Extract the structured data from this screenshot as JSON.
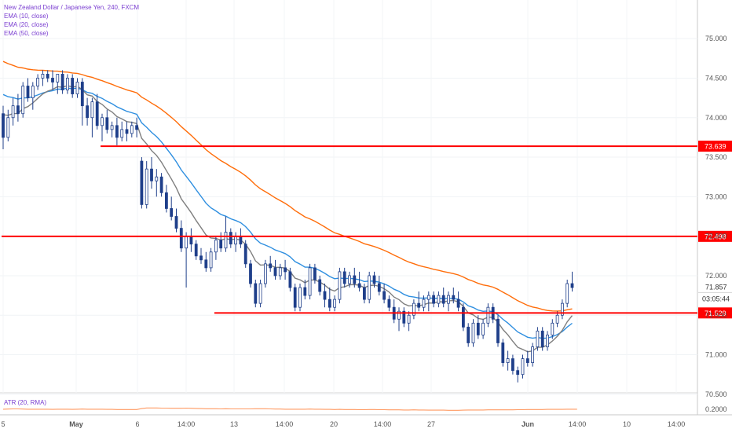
{
  "legend": {
    "title": "New Zealand Dollar / Japanese Yen, 240, FXCM",
    "ema10": "EMA (10, close)",
    "ema20": "EMA (20, close)",
    "ema50": "EMA (50, close)"
  },
  "atr_label": "ATR (20, RMA)",
  "colors": {
    "ema10": "#7f7f7f",
    "ema20": "#2f8fe0",
    "ema50": "#ff6d0a",
    "hline": "#ff0000",
    "candle": "#1f3f8a",
    "atr": "#ff9a62",
    "price_tag": "#ff0000",
    "accent_text": "#7b3fd1"
  },
  "chart_data": {
    "type": "candlestick",
    "price_ticks": [
      "75.000",
      "74.500",
      "74.000",
      "73.500",
      "73.000",
      "72.500",
      "72.000",
      "71.500",
      "71.000",
      "70.500"
    ],
    "price_tick_values": [
      75.0,
      74.5,
      74.0,
      73.5,
      73.0,
      72.5,
      72.0,
      71.5,
      71.0,
      70.5
    ],
    "ylim": [
      70.25,
      75.2
    ],
    "x_ticks": [
      "5",
      "May",
      "6",
      "14:00",
      "13",
      "14:00",
      "20",
      "14:00",
      "27",
      "Jun",
      "14:00",
      "10",
      "14:00"
    ],
    "x_bold": [
      "May",
      "Jun"
    ],
    "horizontal_levels": [
      {
        "value": 73.639,
        "label": "73.639",
        "from_bar": 20
      },
      {
        "value": 72.498,
        "label": "72.498",
        "from_bar": 0
      },
      {
        "value": 71.529,
        "label": "71.529",
        "from_bar": 43
      }
    ],
    "last_price": {
      "value": 71.857,
      "label": "71.857",
      "countdown": "03:05:44"
    },
    "ohlc": [
      [
        74.05,
        74.15,
        73.6,
        73.75
      ],
      [
        73.75,
        74.1,
        73.7,
        74.0
      ],
      [
        74.0,
        74.25,
        73.9,
        74.15
      ],
      [
        74.15,
        74.3,
        73.95,
        74.05
      ],
      [
        74.05,
        74.45,
        74.0,
        74.4
      ],
      [
        74.4,
        74.5,
        74.2,
        74.25
      ],
      [
        74.25,
        74.45,
        74.1,
        74.4
      ],
      [
        74.4,
        74.55,
        74.35,
        74.5
      ],
      [
        74.5,
        74.6,
        74.4,
        74.55
      ],
      [
        74.55,
        74.6,
        74.45,
        74.5
      ],
      [
        74.5,
        74.6,
        74.35,
        74.45
      ],
      [
        74.45,
        74.55,
        74.3,
        74.55
      ],
      [
        74.55,
        74.6,
        74.3,
        74.35
      ],
      [
        74.35,
        74.55,
        74.3,
        74.5
      ],
      [
        74.5,
        74.55,
        74.25,
        74.3
      ],
      [
        74.3,
        74.5,
        74.25,
        74.45
      ],
      [
        74.45,
        74.5,
        73.9,
        74.15
      ],
      [
        74.15,
        74.25,
        73.9,
        74.0
      ],
      [
        74.0,
        74.25,
        73.75,
        74.2
      ],
      [
        74.2,
        74.3,
        73.85,
        73.9
      ],
      [
        73.9,
        74.05,
        73.7,
        74.0
      ],
      [
        74.0,
        74.1,
        73.8,
        73.85
      ],
      [
        73.85,
        73.95,
        73.75,
        73.9
      ],
      [
        73.9,
        74.0,
        73.65,
        73.75
      ],
      [
        73.75,
        73.95,
        73.7,
        73.85
      ],
      [
        73.85,
        73.95,
        73.7,
        73.8
      ],
      [
        73.8,
        73.95,
        73.75,
        73.9
      ],
      [
        73.9,
        74.0,
        73.75,
        73.85
      ],
      [
        73.45,
        73.5,
        72.85,
        72.9
      ],
      [
        72.9,
        73.45,
        72.85,
        73.35
      ],
      [
        73.35,
        73.5,
        73.1,
        73.2
      ],
      [
        73.2,
        73.35,
        73.0,
        73.25
      ],
      [
        73.25,
        73.3,
        73.0,
        73.05
      ],
      [
        73.05,
        73.15,
        72.8,
        72.85
      ],
      [
        72.85,
        73.0,
        72.7,
        72.75
      ],
      [
        72.75,
        72.85,
        72.55,
        72.6
      ],
      [
        72.6,
        72.7,
        72.3,
        72.35
      ],
      [
        72.35,
        72.55,
        71.85,
        72.5
      ],
      [
        72.5,
        72.6,
        72.3,
        72.4
      ],
      [
        72.4,
        72.45,
        72.2,
        72.25
      ],
      [
        72.25,
        72.35,
        72.15,
        72.2
      ],
      [
        72.2,
        72.3,
        72.05,
        72.1
      ],
      [
        72.1,
        72.35,
        72.05,
        72.3
      ],
      [
        72.3,
        72.5,
        72.2,
        72.45
      ],
      [
        72.45,
        72.55,
        72.3,
        72.35
      ],
      [
        72.35,
        72.75,
        72.3,
        72.55
      ],
      [
        72.55,
        72.6,
        72.35,
        72.4
      ],
      [
        72.4,
        72.55,
        72.3,
        72.5
      ],
      [
        72.5,
        72.6,
        72.35,
        72.4
      ],
      [
        72.4,
        72.45,
        72.1,
        72.15
      ],
      [
        72.15,
        72.2,
        71.85,
        71.9
      ],
      [
        71.9,
        71.95,
        71.6,
        71.65
      ],
      [
        71.65,
        71.95,
        71.6,
        71.9
      ],
      [
        71.9,
        72.2,
        71.85,
        72.15
      ],
      [
        72.15,
        72.25,
        72.05,
        72.1
      ],
      [
        72.1,
        72.2,
        71.95,
        72.0
      ],
      [
        72.0,
        72.15,
        71.95,
        72.1
      ],
      [
        72.1,
        72.2,
        71.95,
        72.05
      ],
      [
        72.05,
        72.1,
        71.8,
        71.85
      ],
      [
        71.85,
        71.9,
        71.55,
        71.6
      ],
      [
        71.6,
        71.9,
        71.55,
        71.85
      ],
      [
        71.85,
        71.95,
        71.7,
        71.75
      ],
      [
        71.75,
        72.15,
        71.7,
        72.1
      ],
      [
        72.1,
        72.15,
        71.9,
        71.95
      ],
      [
        71.95,
        72.0,
        71.75,
        71.8
      ],
      [
        71.8,
        71.9,
        71.6,
        71.7
      ],
      [
        71.7,
        71.85,
        71.55,
        71.6
      ],
      [
        71.6,
        71.75,
        71.55,
        71.7
      ],
      [
        71.7,
        72.1,
        71.65,
        72.05
      ],
      [
        72.05,
        72.1,
        71.85,
        71.9
      ],
      [
        71.9,
        72.05,
        71.85,
        72.0
      ],
      [
        72.0,
        72.1,
        71.85,
        71.9
      ],
      [
        71.9,
        72.05,
        71.8,
        71.85
      ],
      [
        71.85,
        71.9,
        71.65,
        71.7
      ],
      [
        71.7,
        72.05,
        71.65,
        72.0
      ],
      [
        72.0,
        72.05,
        71.85,
        71.9
      ],
      [
        71.9,
        72.0,
        71.75,
        71.8
      ],
      [
        71.8,
        71.9,
        71.65,
        71.7
      ],
      [
        71.7,
        71.75,
        71.55,
        71.6
      ],
      [
        71.6,
        71.7,
        71.4,
        71.45
      ],
      [
        71.45,
        71.6,
        71.3,
        71.55
      ],
      [
        71.55,
        71.6,
        71.35,
        71.4
      ],
      [
        71.4,
        71.55,
        71.3,
        71.5
      ],
      [
        71.5,
        71.7,
        71.45,
        71.65
      ],
      [
        71.65,
        71.8,
        71.55,
        71.6
      ],
      [
        71.6,
        71.75,
        71.55,
        71.7
      ],
      [
        71.7,
        71.8,
        71.55,
        71.75
      ],
      [
        71.75,
        71.8,
        71.6,
        71.65
      ],
      [
        71.65,
        71.8,
        71.6,
        71.75
      ],
      [
        71.75,
        71.85,
        71.6,
        71.65
      ],
      [
        71.65,
        71.8,
        71.55,
        71.75
      ],
      [
        71.75,
        71.85,
        71.65,
        71.7
      ],
      [
        71.7,
        71.8,
        71.55,
        71.6
      ],
      [
        71.6,
        71.65,
        71.3,
        71.35
      ],
      [
        71.35,
        71.4,
        71.1,
        71.15
      ],
      [
        71.15,
        71.45,
        71.1,
        71.4
      ],
      [
        71.4,
        71.5,
        71.2,
        71.25
      ],
      [
        71.25,
        71.45,
        71.2,
        71.4
      ],
      [
        71.4,
        71.65,
        71.35,
        71.6
      ],
      [
        71.6,
        71.65,
        71.4,
        71.45
      ],
      [
        71.45,
        71.5,
        71.1,
        71.15
      ],
      [
        71.15,
        71.2,
        70.85,
        70.9
      ],
      [
        70.9,
        71.05,
        70.8,
        70.95
      ],
      [
        70.95,
        71.0,
        70.75,
        70.8
      ],
      [
        70.8,
        70.85,
        70.65,
        70.75
      ],
      [
        70.75,
        71.0,
        70.7,
        70.95
      ],
      [
        70.95,
        71.05,
        70.85,
        70.9
      ],
      [
        70.9,
        71.15,
        70.85,
        71.1
      ],
      [
        71.1,
        71.35,
        71.05,
        71.3
      ],
      [
        71.3,
        71.35,
        71.05,
        71.1
      ],
      [
        71.1,
        71.3,
        71.05,
        71.25
      ],
      [
        71.25,
        71.45,
        71.2,
        71.4
      ],
      [
        71.4,
        71.55,
        71.35,
        71.5
      ],
      [
        71.5,
        71.7,
        71.45,
        71.65
      ],
      [
        71.65,
        71.95,
        71.6,
        71.9
      ],
      [
        71.9,
        72.05,
        71.8,
        71.85
      ]
    ],
    "atr": [
      0.2,
      0.205,
      0.21,
      0.21,
      0.205,
      0.2,
      0.2,
      0.2,
      0.2,
      0.2,
      0.195,
      0.2,
      0.2,
      0.2,
      0.195,
      0.2,
      0.205,
      0.2,
      0.2,
      0.2,
      0.2,
      0.195,
      0.195,
      0.19,
      0.19,
      0.19,
      0.19,
      0.19,
      0.22,
      0.24,
      0.24,
      0.24,
      0.235,
      0.235,
      0.23,
      0.23,
      0.23,
      0.235,
      0.23,
      0.225,
      0.22,
      0.215,
      0.215,
      0.215,
      0.21,
      0.215,
      0.21,
      0.21,
      0.21,
      0.21,
      0.21,
      0.215,
      0.215,
      0.215,
      0.21,
      0.205,
      0.205,
      0.2,
      0.2,
      0.2,
      0.2,
      0.2,
      0.205,
      0.2,
      0.2,
      0.195,
      0.195,
      0.19,
      0.195,
      0.19,
      0.19,
      0.19,
      0.185,
      0.185,
      0.19,
      0.19,
      0.185,
      0.185,
      0.18,
      0.18,
      0.18,
      0.175,
      0.175,
      0.18,
      0.175,
      0.175,
      0.17,
      0.17,
      0.17,
      0.17,
      0.165,
      0.165,
      0.165,
      0.17,
      0.175,
      0.175,
      0.175,
      0.175,
      0.18,
      0.18,
      0.18,
      0.18,
      0.18,
      0.18,
      0.185,
      0.185,
      0.19,
      0.19,
      0.19,
      0.19,
      0.195,
      0.195,
      0.195,
      0.195,
      0.2,
      0.2,
      0.2
    ],
    "atr_tick": "0.2000",
    "atr_ylim": [
      0.1,
      0.35
    ]
  }
}
